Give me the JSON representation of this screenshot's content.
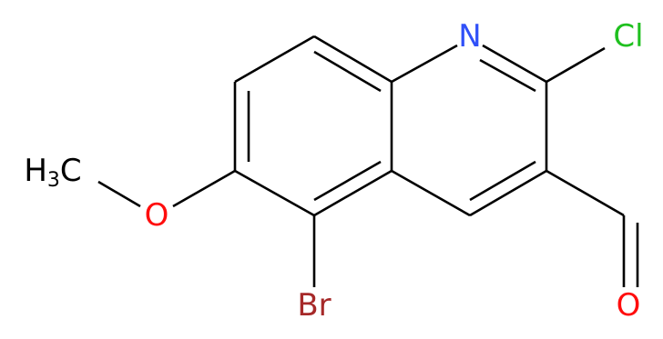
{
  "atoms": {
    "n": "N",
    "cl": "Cl",
    "br": "Br",
    "o_methoxy": "O",
    "o_aldehyde": "O"
  },
  "methyl": {
    "h": "H",
    "sub": "3",
    "c": "C"
  }
}
